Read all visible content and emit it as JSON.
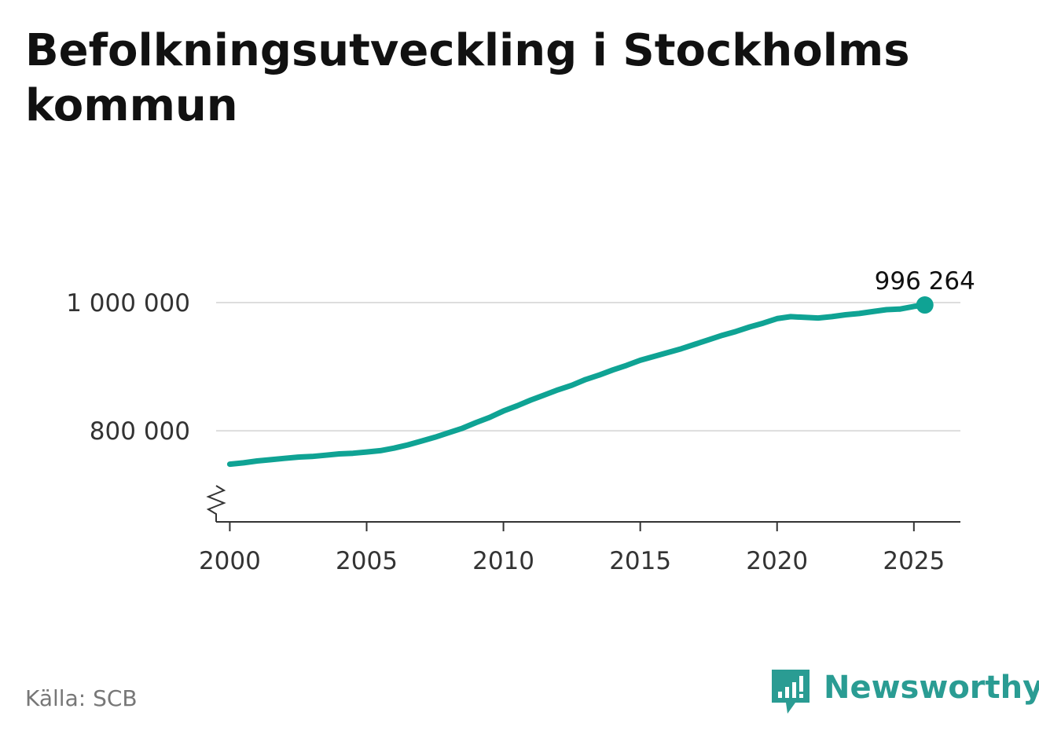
{
  "title": "Befolkningsutveckling i Stockholms kommun",
  "source": "Källa: SCB",
  "brand": {
    "name": "Newsworthy",
    "icon": "newsworthy-logo-icon"
  },
  "colors": {
    "line": "#0fa394",
    "grid": "#dddddd",
    "axis": "#333333",
    "brand": "#2a9c93"
  },
  "chart_data": {
    "type": "line",
    "xlim": [
      1999.5,
      2026.7
    ],
    "ylim": [
      658000,
      1000000
    ],
    "axis_break": true,
    "grid": true,
    "x_ticks": [
      2000,
      2005,
      2010,
      2015,
      2020,
      2025
    ],
    "x_tick_labels": [
      "2000",
      "2005",
      "2010",
      "2015",
      "2020",
      "2025"
    ],
    "y_ticks": [
      800000,
      1000000
    ],
    "y_tick_labels": [
      "800 000",
      "1 000 000"
    ],
    "end_label": "996 264",
    "series": [
      {
        "x": [
          2000.0,
          2000.5,
          2001.0,
          2001.5,
          2002.0,
          2002.5,
          2003.0,
          2003.5,
          2004.0,
          2004.5,
          2005.0,
          2005.5,
          2006.0,
          2006.5,
          2007.0,
          2007.5,
          2008.0,
          2008.5,
          2009.0,
          2009.5,
          2010.0,
          2010.5,
          2011.0,
          2011.5,
          2012.0,
          2012.5,
          2013.0,
          2013.5,
          2014.0,
          2014.5,
          2015.0,
          2015.5,
          2016.0,
          2016.5,
          2017.0,
          2017.5,
          2018.0,
          2018.5,
          2019.0,
          2019.5,
          2020.0,
          2020.5,
          2021.0,
          2021.5,
          2022.0,
          2022.5,
          2023.0,
          2023.5,
          2024.0,
          2024.5,
          2025.0,
          2025.4
        ],
        "y": [
          748000,
          750000,
          753000,
          755000,
          757000,
          759000,
          760000,
          762000,
          764000,
          765000,
          767000,
          769000,
          773000,
          778000,
          784000,
          790000,
          797000,
          804000,
          813000,
          821000,
          831000,
          839000,
          848000,
          856000,
          864000,
          871000,
          880000,
          887000,
          895000,
          902000,
          910000,
          916000,
          922000,
          928000,
          935000,
          942000,
          949000,
          955000,
          962000,
          968000,
          975000,
          978000,
          977000,
          976000,
          978000,
          981000,
          983000,
          986000,
          989000,
          990000,
          994000,
          996264
        ]
      }
    ]
  }
}
